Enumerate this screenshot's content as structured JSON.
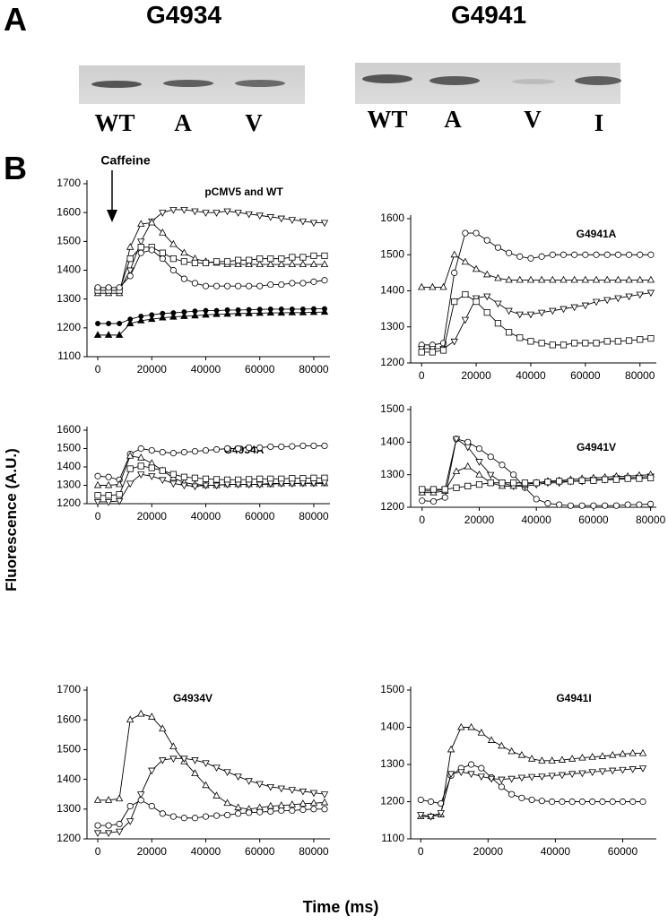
{
  "panel_labels": {
    "a": "A",
    "b": "B"
  },
  "blots": [
    {
      "title": "G4934",
      "lanes": [
        "WT",
        "A",
        "V"
      ]
    },
    {
      "title": "G4941",
      "lanes": [
        "WT",
        "A",
        "V",
        "I"
      ]
    }
  ],
  "shared_axes": {
    "y_label": "Fluorescence (A.U.)",
    "x_label": "Time (ms)"
  },
  "chart_data": [
    {
      "type": "line",
      "title": "pCMV5 and WT",
      "annotation": "Caffeine",
      "x": [
        0,
        4000,
        8000,
        12000,
        16000,
        20000,
        24000,
        28000,
        32000,
        36000,
        40000,
        44000,
        48000,
        52000,
        56000,
        60000,
        64000,
        68000,
        72000,
        76000,
        80000,
        84000
      ],
      "xlim": [
        -4000,
        86000
      ],
      "xticks": [
        0,
        20000,
        40000,
        60000,
        80000
      ],
      "ylim": [
        1100,
        1700
      ],
      "yticks": [
        1100,
        1200,
        1300,
        1400,
        1500,
        1600,
        1700
      ],
      "series": [
        {
          "marker": "triangle-down",
          "color": "#000000",
          "values": [
            1330,
            1330,
            1330,
            1400,
            1500,
            1570,
            1600,
            1610,
            1610,
            1605,
            1600,
            1600,
            1605,
            1600,
            1595,
            1590,
            1585,
            1580,
            1575,
            1570,
            1565,
            1565
          ]
        },
        {
          "marker": "triangle",
          "color": "#000000",
          "values": [
            1320,
            1320,
            1320,
            1480,
            1560,
            1565,
            1530,
            1490,
            1460,
            1440,
            1430,
            1425,
            1420,
            1420,
            1420,
            1420,
            1420,
            1420,
            1420,
            1420,
            1420,
            1420
          ]
        },
        {
          "marker": "square",
          "color": "#000000",
          "values": [
            1330,
            1330,
            1330,
            1440,
            1480,
            1480,
            1460,
            1440,
            1430,
            1425,
            1425,
            1430,
            1430,
            1435,
            1435,
            1440,
            1440,
            1440,
            1445,
            1445,
            1450,
            1450
          ]
        },
        {
          "marker": "circle",
          "color": "#000000",
          "values": [
            1340,
            1340,
            1340,
            1380,
            1460,
            1470,
            1440,
            1400,
            1370,
            1355,
            1345,
            1345,
            1345,
            1345,
            1345,
            1345,
            1350,
            1350,
            1355,
            1355,
            1360,
            1365
          ]
        },
        {
          "marker": "filled-circle",
          "color": "#000000",
          "values": [
            1215,
            1215,
            1215,
            1230,
            1240,
            1245,
            1250,
            1252,
            1255,
            1258,
            1260,
            1260,
            1262,
            1262,
            1263,
            1264,
            1265,
            1265,
            1265,
            1265,
            1266,
            1266
          ]
        },
        {
          "marker": "filled-triangle",
          "color": "#000000",
          "values": [
            1175,
            1175,
            1175,
            1215,
            1225,
            1230,
            1235,
            1238,
            1240,
            1242,
            1245,
            1247,
            1248,
            1250,
            1250,
            1251,
            1252,
            1252,
            1253,
            1253,
            1254,
            1255
          ]
        }
      ]
    },
    {
      "type": "line",
      "title": "G4941A",
      "x": [
        0,
        4000,
        8000,
        12000,
        16000,
        20000,
        24000,
        28000,
        32000,
        36000,
        40000,
        44000,
        48000,
        52000,
        56000,
        60000,
        64000,
        68000,
        72000,
        76000,
        80000,
        84000
      ],
      "xlim": [
        -4000,
        86000
      ],
      "xticks": [
        0,
        20000,
        40000,
        60000,
        80000
      ],
      "ylim": [
        1200,
        1600
      ],
      "yticks": [
        1200,
        1300,
        1400,
        1500,
        1600
      ],
      "series": [
        {
          "marker": "circle",
          "color": "#000000",
          "values": [
            1250,
            1250,
            1255,
            1450,
            1560,
            1560,
            1540,
            1520,
            1505,
            1495,
            1490,
            1495,
            1500,
            1500,
            1500,
            1500,
            1500,
            1500,
            1500,
            1500,
            1500,
            1500
          ]
        },
        {
          "marker": "triangle",
          "color": "#000000",
          "values": [
            1410,
            1410,
            1410,
            1500,
            1480,
            1460,
            1445,
            1435,
            1430,
            1430,
            1430,
            1430,
            1430,
            1430,
            1430,
            1430,
            1430,
            1430,
            1430,
            1430,
            1430,
            1430
          ]
        },
        {
          "marker": "triangle-down",
          "color": "#000000",
          "values": [
            1240,
            1240,
            1240,
            1260,
            1320,
            1380,
            1385,
            1365,
            1345,
            1335,
            1335,
            1340,
            1345,
            1350,
            1355,
            1360,
            1370,
            1375,
            1380,
            1385,
            1390,
            1395
          ]
        },
        {
          "marker": "square",
          "color": "#000000",
          "values": [
            1230,
            1230,
            1235,
            1370,
            1390,
            1370,
            1340,
            1310,
            1285,
            1270,
            1260,
            1255,
            1250,
            1250,
            1255,
            1255,
            1255,
            1260,
            1260,
            1262,
            1265,
            1268
          ]
        }
      ]
    },
    {
      "type": "line",
      "title": "G4934A",
      "x": [
        0,
        4000,
        8000,
        12000,
        16000,
        20000,
        24000,
        28000,
        32000,
        36000,
        40000,
        44000,
        48000,
        52000,
        56000,
        60000,
        64000,
        68000,
        72000,
        76000,
        80000,
        84000
      ],
      "xlim": [
        -4000,
        86000
      ],
      "xticks": [
        0,
        20000,
        40000,
        60000,
        80000
      ],
      "ylim": [
        1200,
        1600
      ],
      "yticks": [
        1200,
        1300,
        1400,
        1500,
        1600
      ],
      "series": [
        {
          "marker": "circle",
          "color": "#000000",
          "values": [
            1350,
            1345,
            1330,
            1470,
            1500,
            1490,
            1480,
            1475,
            1480,
            1485,
            1490,
            1495,
            1500,
            1500,
            1505,
            1505,
            1510,
            1510,
            1512,
            1515,
            1515,
            1515
          ]
        },
        {
          "marker": "triangle",
          "color": "#000000",
          "values": [
            1300,
            1300,
            1305,
            1460,
            1450,
            1420,
            1380,
            1340,
            1315,
            1305,
            1300,
            1300,
            1305,
            1305,
            1305,
            1305,
            1305,
            1310,
            1310,
            1310,
            1310,
            1310
          ]
        },
        {
          "marker": "square",
          "color": "#000000",
          "values": [
            1245,
            1245,
            1250,
            1390,
            1405,
            1395,
            1380,
            1360,
            1345,
            1340,
            1335,
            1332,
            1330,
            1330,
            1332,
            1335,
            1335,
            1335,
            1338,
            1338,
            1340,
            1340
          ]
        },
        {
          "marker": "triangle-down",
          "color": "#000000",
          "values": [
            1210,
            1210,
            1215,
            1310,
            1360,
            1350,
            1330,
            1310,
            1300,
            1295,
            1300,
            1300,
            1305,
            1305,
            1305,
            1305,
            1310,
            1310,
            1310,
            1312,
            1312,
            1315
          ]
        }
      ]
    },
    {
      "type": "line",
      "title": "G4941V",
      "x": [
        0,
        4000,
        8000,
        12000,
        16000,
        20000,
        24000,
        28000,
        32000,
        36000,
        40000,
        44000,
        48000,
        52000,
        56000,
        60000,
        64000,
        68000,
        72000,
        76000,
        80000
      ],
      "xlim": [
        -4000,
        82000
      ],
      "xticks": [
        0,
        20000,
        40000,
        60000,
        80000
      ],
      "ylim": [
        1200,
        1500
      ],
      "yticks": [
        1200,
        1300,
        1400,
        1500
      ],
      "series": [
        {
          "marker": "circle",
          "color": "#000000",
          "values": [
            1220,
            1218,
            1230,
            1410,
            1400,
            1380,
            1355,
            1330,
            1300,
            1260,
            1225,
            1212,
            1208,
            1205,
            1205,
            1205,
            1205,
            1205,
            1208,
            1208,
            1210
          ]
        },
        {
          "marker": "triangle-down",
          "color": "#000000",
          "values": [
            1250,
            1250,
            1255,
            1410,
            1385,
            1340,
            1300,
            1275,
            1265,
            1265,
            1270,
            1275,
            1275,
            1280,
            1280,
            1285,
            1285,
            1290,
            1290,
            1292,
            1295
          ]
        },
        {
          "marker": "triangle",
          "color": "#000000",
          "values": [
            1245,
            1245,
            1250,
            1310,
            1325,
            1300,
            1275,
            1265,
            1265,
            1270,
            1275,
            1280,
            1282,
            1285,
            1288,
            1290,
            1292,
            1295,
            1295,
            1298,
            1300
          ]
        },
        {
          "marker": "square",
          "color": "#000000",
          "values": [
            1255,
            1255,
            1255,
            1260,
            1265,
            1270,
            1275,
            1275,
            1275,
            1275,
            1275,
            1278,
            1280,
            1280,
            1282,
            1282,
            1285,
            1285,
            1288,
            1288,
            1290
          ]
        }
      ]
    },
    {
      "type": "line",
      "title": "G4934V",
      "x": [
        0,
        4000,
        8000,
        12000,
        16000,
        20000,
        24000,
        28000,
        32000,
        36000,
        40000,
        44000,
        48000,
        52000,
        56000,
        60000,
        64000,
        68000,
        72000,
        76000,
        80000,
        84000
      ],
      "xlim": [
        -4000,
        86000
      ],
      "xticks": [
        0,
        20000,
        40000,
        60000,
        80000
      ],
      "ylim": [
        1200,
        1700
      ],
      "yticks": [
        1200,
        1300,
        1400,
        1500,
        1600,
        1700
      ],
      "series": [
        {
          "marker": "triangle",
          "color": "#000000",
          "values": [
            1330,
            1330,
            1335,
            1600,
            1620,
            1610,
            1570,
            1510,
            1460,
            1420,
            1380,
            1345,
            1320,
            1305,
            1300,
            1305,
            1310,
            1312,
            1315,
            1318,
            1320,
            1322
          ]
        },
        {
          "marker": "triangle-down",
          "color": "#000000",
          "values": [
            1220,
            1220,
            1225,
            1260,
            1350,
            1430,
            1465,
            1470,
            1470,
            1465,
            1455,
            1440,
            1425,
            1410,
            1395,
            1385,
            1375,
            1370,
            1365,
            1360,
            1355,
            1350
          ]
        },
        {
          "marker": "circle",
          "color": "#000000",
          "values": [
            1245,
            1245,
            1250,
            1310,
            1330,
            1310,
            1285,
            1275,
            1270,
            1270,
            1275,
            1278,
            1280,
            1285,
            1288,
            1290,
            1292,
            1295,
            1295,
            1298,
            1300,
            1300
          ]
        }
      ]
    },
    {
      "type": "line",
      "title": "G4941I",
      "x": [
        0,
        3000,
        6000,
        9000,
        12000,
        15000,
        18000,
        21000,
        24000,
        27000,
        30000,
        33000,
        36000,
        39000,
        42000,
        45000,
        48000,
        51000,
        54000,
        57000,
        60000,
        63000,
        66000
      ],
      "xlim": [
        -3000,
        70000
      ],
      "xticks": [
        0,
        20000,
        40000,
        60000
      ],
      "ylim": [
        1100,
        1500
      ],
      "yticks": [
        1100,
        1200,
        1300,
        1400,
        1500
      ],
      "series": [
        {
          "marker": "triangle",
          "color": "#000000",
          "values": [
            1160,
            1160,
            1165,
            1340,
            1400,
            1400,
            1385,
            1365,
            1350,
            1335,
            1325,
            1315,
            1310,
            1310,
            1312,
            1315,
            1318,
            1320,
            1322,
            1325,
            1328,
            1330,
            1330
          ]
        },
        {
          "marker": "circle",
          "color": "#000000",
          "values": [
            1205,
            1200,
            1195,
            1270,
            1290,
            1300,
            1290,
            1265,
            1240,
            1220,
            1210,
            1205,
            1202,
            1200,
            1200,
            1200,
            1200,
            1200,
            1200,
            1200,
            1200,
            1200,
            1200
          ]
        },
        {
          "marker": "triangle-down",
          "color": "#000000",
          "values": [
            1165,
            1160,
            1170,
            1275,
            1280,
            1275,
            1268,
            1262,
            1260,
            1262,
            1265,
            1267,
            1268,
            1270,
            1272,
            1275,
            1277,
            1280,
            1282,
            1284,
            1286,
            1288,
            1290
          ]
        }
      ]
    }
  ]
}
